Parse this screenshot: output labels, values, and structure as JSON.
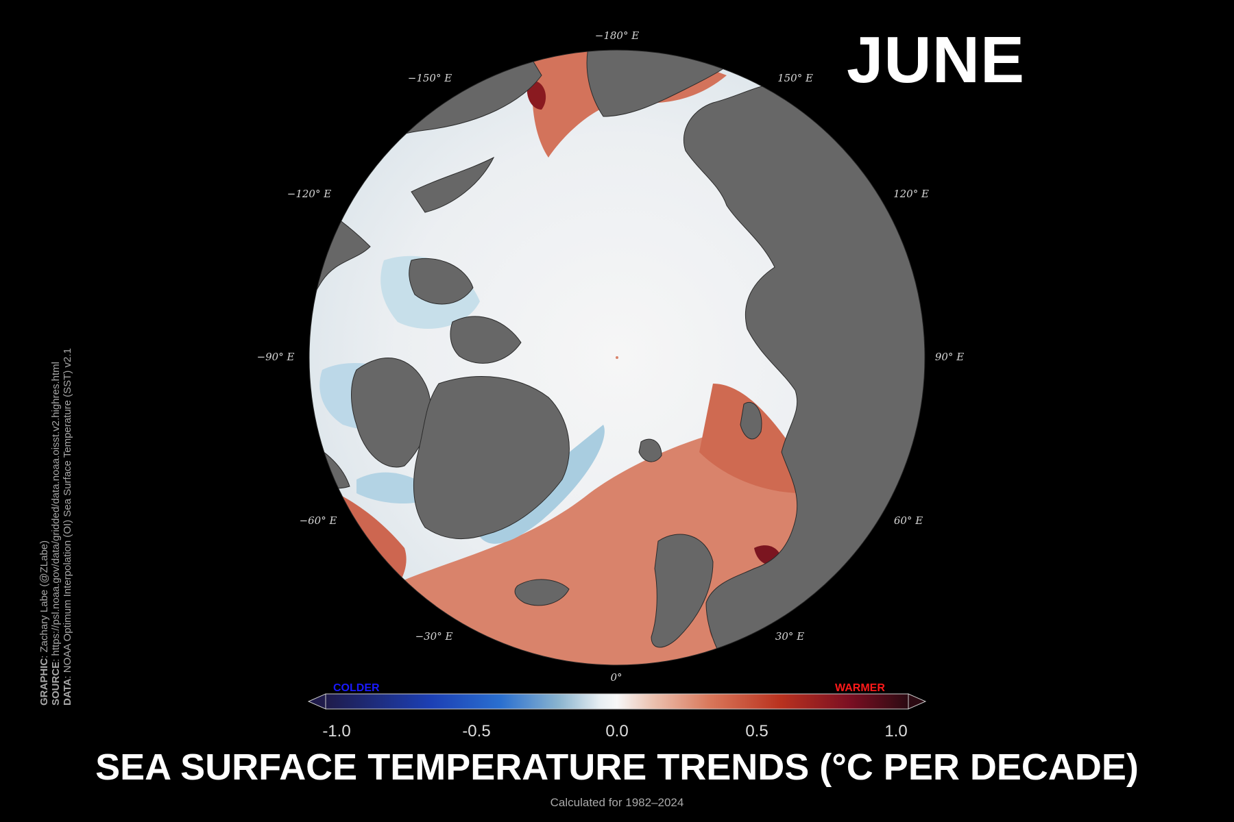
{
  "month": "JUNE",
  "title": "SEA SURFACE TEMPERATURE TRENDS (°C PER DECADE)",
  "subtitle": "Calculated for 1982–2024",
  "credits": {
    "graphic_label": "GRAPHIC",
    "graphic_text": ": Zachary Labe (@ZLabe)",
    "source_label": "SOURCE",
    "source_text": ": https://psl.noaa.gov/data/gridded/data.noaa.oisst.v2.highres.html",
    "data_label": "DATA",
    "data_text": ": NOAA Optimum Interpolation (OI) Sea Surface Temperature (SST) v2.1"
  },
  "longitude_labels": {
    "lon_m180": "−180° E",
    "lon_m150": "−150° E",
    "lon_150": "150° E",
    "lon_m120": "−120° E",
    "lon_120": "120° E",
    "lon_m90": "−90° E",
    "lon_90": "90° E",
    "lon_m60": "−60° E",
    "lon_60": "60° E",
    "lon_m30": "−30° E",
    "lon_30": "30° E",
    "lon_0": "0°"
  },
  "colorbar": {
    "colder_label": "COLDER",
    "warmer_label": "WARMER",
    "ticks": [
      "-1.0",
      "-0.5",
      "0.0",
      "0.5",
      "1.0"
    ],
    "min": -1.0,
    "max": 1.0,
    "colormap": [
      "#1f1b4a",
      "#1c3fb4",
      "#2a6fcf",
      "#8ab4cf",
      "#e6eef2",
      "#f7f7f7",
      "#ecc3b2",
      "#d9775a",
      "#b9321f",
      "#7a0f22",
      "#2b0a12"
    ]
  },
  "colors": {
    "background": "#000000",
    "land": "#676767",
    "ice_white": "#eef1f4",
    "cold_blue": "#a9cde0",
    "warm_red": "#d87a62",
    "deep_red": "#8a1a20"
  }
}
